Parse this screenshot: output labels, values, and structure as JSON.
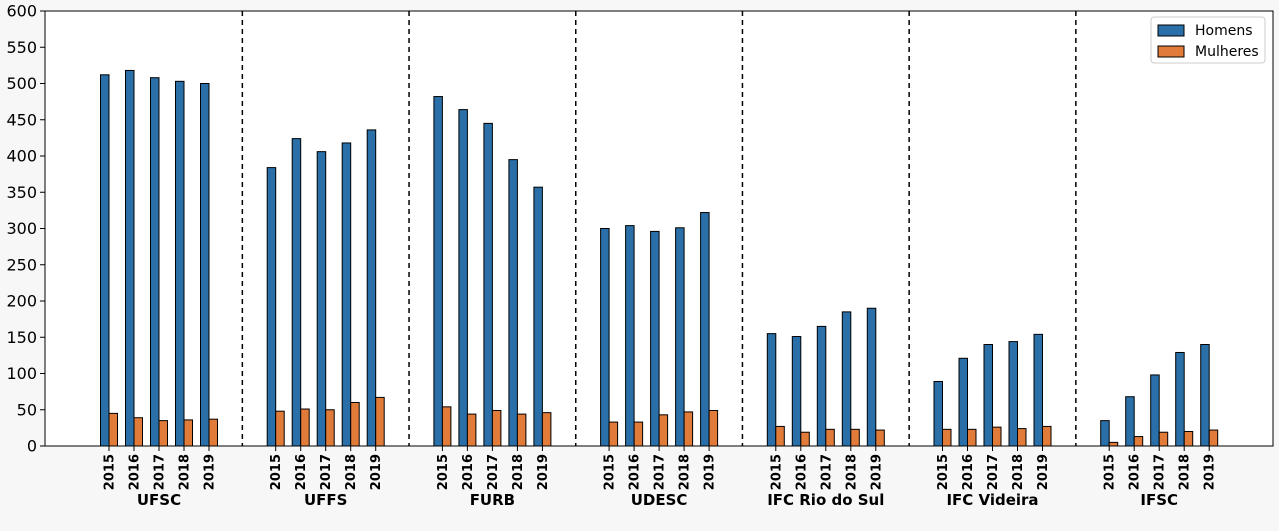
{
  "chart_data": {
    "type": "bar",
    "title": "",
    "xlabel": "",
    "ylabel": "",
    "ylim": [
      0,
      600
    ],
    "yticks": [
      0,
      50,
      100,
      150,
      200,
      250,
      300,
      350,
      400,
      450,
      500,
      550,
      600
    ],
    "years": [
      "2015",
      "2016",
      "2017",
      "2018",
      "2019"
    ],
    "legend_position": "top-right",
    "grid": false,
    "colors": {
      "Homens": "#2a6fa8",
      "Mulheres": "#e07b39"
    },
    "groups": [
      {
        "name": "UFSC",
        "series": [
          {
            "name": "Homens",
            "values": [
              512,
              518,
              508,
              503,
              500
            ]
          },
          {
            "name": "Mulheres",
            "values": [
              45,
              39,
              35,
              36,
              37
            ]
          }
        ]
      },
      {
        "name": "UFFS",
        "series": [
          {
            "name": "Homens",
            "values": [
              384,
              424,
              406,
              418,
              436
            ]
          },
          {
            "name": "Mulheres",
            "values": [
              48,
              51,
              50,
              60,
              67
            ]
          }
        ]
      },
      {
        "name": "FURB",
        "series": [
          {
            "name": "Homens",
            "values": [
              482,
              464,
              445,
              395,
              357
            ]
          },
          {
            "name": "Mulheres",
            "values": [
              54,
              44,
              49,
              44,
              46
            ]
          }
        ]
      },
      {
        "name": "UDESC",
        "series": [
          {
            "name": "Homens",
            "values": [
              300,
              304,
              296,
              301,
              322
            ]
          },
          {
            "name": "Mulheres",
            "values": [
              33,
              33,
              43,
              47,
              49
            ]
          }
        ]
      },
      {
        "name": "IFC Rio do Sul",
        "series": [
          {
            "name": "Homens",
            "values": [
              155,
              151,
              165,
              185,
              190
            ]
          },
          {
            "name": "Mulheres",
            "values": [
              27,
              19,
              23,
              23,
              22
            ]
          }
        ]
      },
      {
        "name": "IFC Videira",
        "series": [
          {
            "name": "Homens",
            "values": [
              89,
              121,
              140,
              144,
              154
            ]
          },
          {
            "name": "Mulheres",
            "values": [
              23,
              23,
              26,
              24,
              27
            ]
          }
        ]
      },
      {
        "name": "IFSC",
        "series": [
          {
            "name": "Homens",
            "values": [
              35,
              68,
              98,
              129,
              140
            ]
          },
          {
            "name": "Mulheres",
            "values": [
              5,
              13,
              19,
              20,
              22
            ]
          }
        ]
      }
    ]
  }
}
